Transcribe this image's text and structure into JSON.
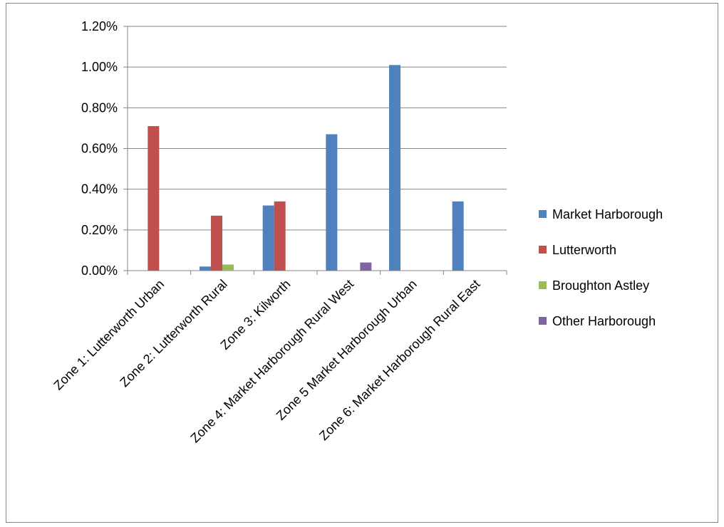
{
  "chart_data": {
    "type": "bar",
    "title": "",
    "xlabel": "",
    "ylabel": "",
    "ylim": [
      0,
      0.012
    ],
    "y_tick_values": [
      0,
      0.002,
      0.004,
      0.006,
      0.008,
      0.01,
      0.012
    ],
    "y_tick_labels": [
      "0.00%",
      "0.20%",
      "0.40%",
      "0.60%",
      "0.80%",
      "1.00%",
      "1.20%"
    ],
    "grid": true,
    "legend_position": "right",
    "categories": [
      "Zone 1: Lutterworth Urban",
      "Zone 2: Lutterworth Rural",
      "Zone 3: Kilworth",
      "Zone 4: Market Harborough Rural West",
      "Zone 5 Market Harborough Urban",
      "Zone 6: Market Harborough Rural East"
    ],
    "series": [
      {
        "name": "Market Harborough",
        "color": "#4F81BD",
        "values": [
          0,
          0.0002,
          0.0032,
          0.0067,
          0.0101,
          0.0034
        ]
      },
      {
        "name": "Lutterworth",
        "color": "#C0504D",
        "values": [
          0.0071,
          0.0027,
          0.0034,
          0,
          0,
          0
        ]
      },
      {
        "name": "Broughton Astley",
        "color": "#9BBB59",
        "values": [
          0,
          0.0003,
          0,
          0,
          0,
          0
        ]
      },
      {
        "name": "Other Harborough",
        "color": "#8064A2",
        "values": [
          0,
          0,
          0,
          0.0004,
          0,
          0
        ]
      }
    ]
  }
}
